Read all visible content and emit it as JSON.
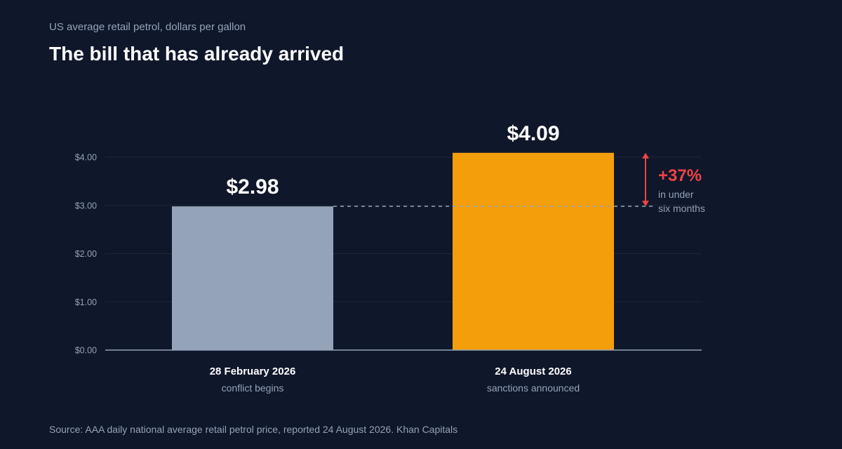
{
  "subtitle": "US average retail petrol, dollars per gallon",
  "title": "The bill that has already arrived",
  "source": "Source: AAA daily national average retail petrol price, reported 24 August 2026. Khan Capitals",
  "colors": {
    "background": "#0f172a",
    "gridline": "#1f2937",
    "axis": "#94a3b8",
    "tick_text": "#94a3b8",
    "bar_before": "#94a3b8",
    "bar_after": "#f59e0b",
    "change": "#ef4444",
    "reference_line": "#94a3b8"
  },
  "chart_data": {
    "type": "bar",
    "title": "The bill that has already arrived",
    "subtitle": "US average retail petrol, dollars per gallon",
    "categories": [
      "28 February 2026",
      "24 August 2026"
    ],
    "category_notes": [
      "conflict begins",
      "sanctions announced"
    ],
    "values": [
      2.98,
      4.09
    ],
    "value_labels": [
      "$2.98",
      "$4.09"
    ],
    "bar_colors": [
      "#94a3b8",
      "#f59e0b"
    ],
    "ylim": [
      0,
      4
    ],
    "yticks": [
      0,
      1,
      2,
      3,
      4
    ],
    "ytick_labels": [
      "$0.00",
      "$1.00",
      "$2.00",
      "$3.00",
      "$4.00"
    ],
    "grid": true,
    "reference_line": {
      "value": 2.98,
      "style": "dashed"
    },
    "annotation": {
      "from": 2.98,
      "to": 4.09,
      "label": "+37%",
      "note_lines": [
        "in under",
        "six months"
      ]
    }
  }
}
